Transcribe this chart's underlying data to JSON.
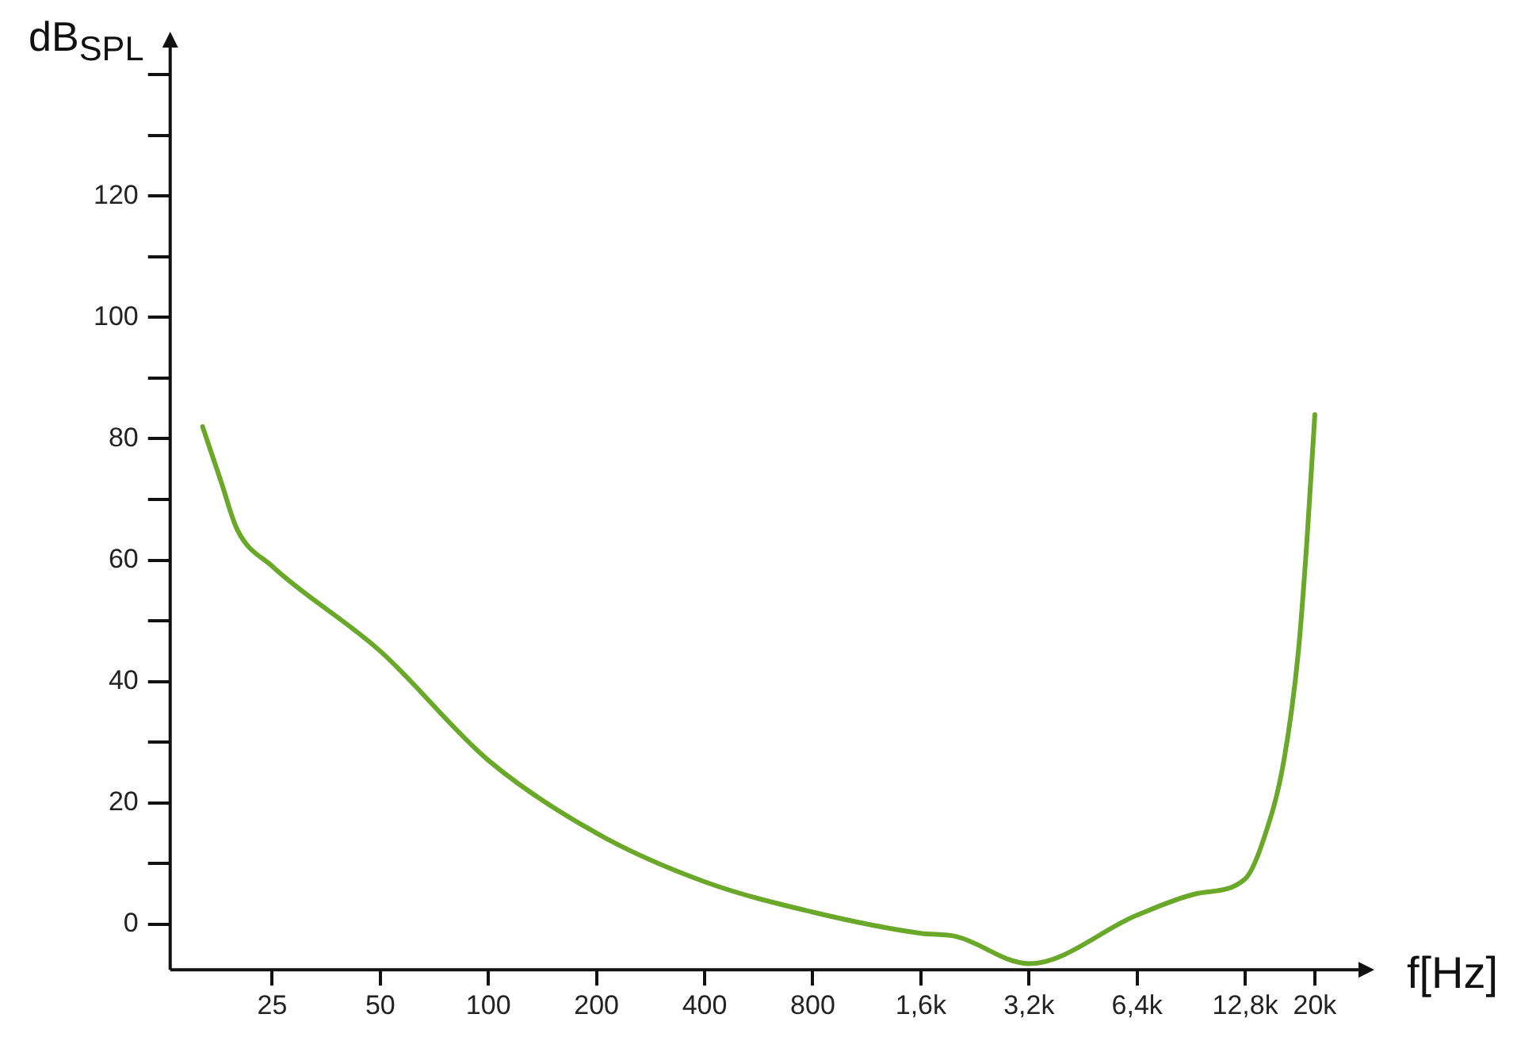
{
  "chart_data": {
    "type": "line",
    "xlabel": "f[Hz]",
    "ylabel": "dB$_{SPL}$",
    "x": [
      16,
      18,
      20,
      25,
      50,
      100,
      200,
      400,
      800,
      1600,
      2000,
      3200,
      6400,
      9300,
      12800,
      14400,
      16400,
      18000,
      19000,
      20000
    ],
    "series": [
      {
        "color": "#6aa82a",
        "values": [
          82,
          73,
          65,
          59,
          45,
          27,
          15,
          7,
          2,
          -1.5,
          -2,
          -6.5,
          1.5,
          5,
          7.5,
          14,
          27,
          45,
          63,
          84
        ]
      }
    ],
    "log": "x",
    "grid": false,
    "legend": false,
    "marker": "none",
    "line_style": "solid",
    "xlim": [
      13,
      27000
    ],
    "xticks": [
      25,
      50,
      100,
      200,
      400,
      800,
      {
        "value": 1600,
        "label": "1,6k"
      },
      {
        "value": 3200,
        "label": "3,2k"
      },
      {
        "value": 6400,
        "label": "6,4k"
      },
      {
        "value": 12800,
        "label": "12,8k"
      },
      {
        "value": 20000,
        "label": "20k"
      }
    ],
    "ylim": [
      -7.5,
      145
    ],
    "yticks": [
      0,
      {
        "value": 10,
        "label": null
      },
      20,
      {
        "value": 30,
        "label": null
      },
      40,
      {
        "value": 50,
        "label": null
      },
      60,
      {
        "value": 70,
        "label": null
      },
      80,
      {
        "value": 90,
        "label": null
      },
      100,
      {
        "value": 110,
        "label": null
      },
      120,
      {
        "value": 130,
        "label": null
      },
      {
        "value": 140,
        "label": null
      }
    ]
  }
}
